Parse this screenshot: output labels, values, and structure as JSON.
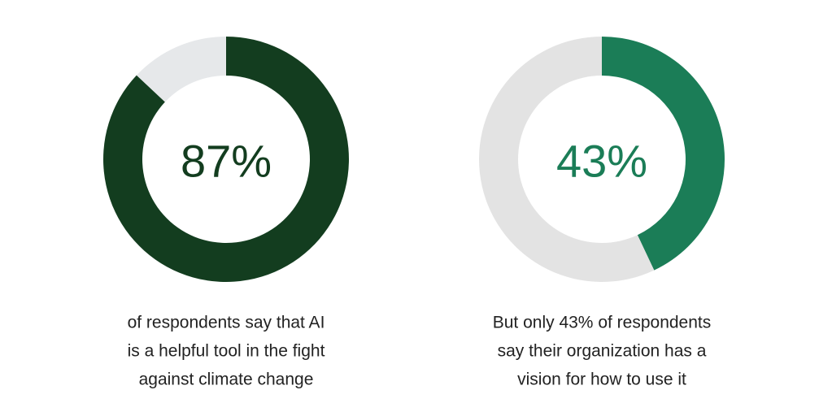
{
  "chart_data": [
    {
      "type": "pie",
      "categories": [
        null,
        null
      ],
      "values": [
        87,
        13
      ],
      "value_labels": [
        "87%",
        null
      ],
      "colors": [
        "#133d1f",
        "#e6e8ea"
      ],
      "caption": [
        "of respondents say that AI",
        "is a helpful tool in the fight",
        "against climate change"
      ]
    },
    {
      "type": "pie",
      "categories": [
        null,
        null
      ],
      "values": [
        43,
        57
      ],
      "value_labels": [
        "43%",
        null
      ],
      "colors": [
        "#1b7d57",
        "#e3e3e3"
      ],
      "caption": [
        "But only 43% of respondents",
        "say their organization has a",
        "vision for how to use it"
      ]
    }
  ]
}
